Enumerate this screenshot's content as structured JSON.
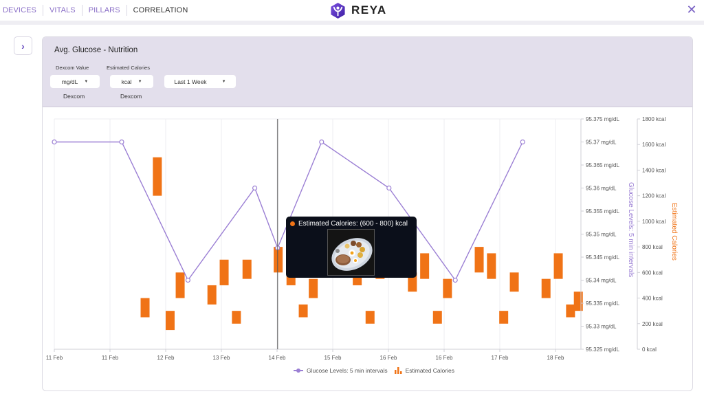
{
  "nav": {
    "items": [
      {
        "label": "DEVICES",
        "active": false
      },
      {
        "label": "VITALS",
        "active": false
      },
      {
        "label": "PILLARS",
        "active": false
      },
      {
        "label": "CORRELATION",
        "active": true
      }
    ]
  },
  "brand": {
    "name": "REYA",
    "logo_icon": "reya-logo-icon"
  },
  "header": {
    "close_icon": "close-icon",
    "expand_icon": "chevron-right-icon"
  },
  "card": {
    "title": "Avg. Glucose - Nutrition",
    "controls": [
      {
        "label": "Dexcom Value",
        "value": "mg/dL",
        "source": "Dexcom"
      },
      {
        "label": "Estimated Calories",
        "value": "kcal",
        "source": "Dexcom"
      },
      {
        "label": "",
        "value": "Last 1 Week",
        "source": ""
      }
    ]
  },
  "colors": {
    "glucose": "#9b7fd4",
    "calories": "#f07316",
    "accent": "#6a4fc0",
    "header_bg": "#e3dfec"
  },
  "tooltip": {
    "text": "Estimated Calories: (600 - 800) kcal",
    "image": "food-plate-image"
  },
  "chart_data": {
    "type": "line+floating-bar",
    "title": "Avg. Glucose - Nutrition",
    "x_tick_labels": [
      "11 Feb",
      "11 Feb",
      "12 Feb",
      "13 Feb",
      "14 Feb",
      "15 Feb",
      "16 Feb",
      "16 Feb",
      "17 Feb",
      "18 Feb"
    ],
    "y_left": {
      "label": "Glucose Levels: 5 min intervals",
      "unit": "mg/dL",
      "range": [
        95.325,
        95.375
      ],
      "ticks": [
        "95.375 mg/dL",
        "95.37 mg/dL",
        "95.365 mg/dL",
        "95.36 mg/dL",
        "95.355 mg/dL",
        "95.35 mg/dL",
        "95.345 mg/dL",
        "95.34 mg/dL",
        "95.335 mg/dL",
        "95.33 mg/dL",
        "95.325 mg/dL"
      ]
    },
    "y_right": {
      "label": "Estimated Calories",
      "unit": "kcal",
      "range": [
        0,
        1800
      ],
      "ticks": [
        "1800 kcal",
        "1600 kcal",
        "1400 kcal",
        "1200 kcal",
        "1000 kcal",
        "800 kcal",
        "600 kcal",
        "400 kcal",
        "200 kcal",
        "0 kcal"
      ]
    },
    "grid": true,
    "legend": {
      "position": "bottom-center",
      "entries": [
        "Glucose Levels: 5 min intervals",
        "Estimated Calories"
      ]
    },
    "series": [
      {
        "name": "Glucose Levels: 5 min intervals",
        "type": "line",
        "axis": "left",
        "points": [
          {
            "x": 0.0,
            "y": 95.37
          },
          {
            "x": 1.21,
            "y": 95.37
          },
          {
            "x": 2.4,
            "y": 95.34
          },
          {
            "x": 3.6,
            "y": 95.36
          },
          {
            "x": 4.01,
            "y": 95.347
          },
          {
            "x": 4.8,
            "y": 95.37
          },
          {
            "x": 6.01,
            "y": 95.36
          },
          {
            "x": 7.2,
            "y": 95.34
          },
          {
            "x": 8.41,
            "y": 95.37
          }
        ]
      },
      {
        "name": "Estimated Calories",
        "type": "floating-bar",
        "axis": "right",
        "ranges": [
          {
            "x": 1.63,
            "low": 250,
            "high": 400
          },
          {
            "x": 1.85,
            "low": 1200,
            "high": 1500
          },
          {
            "x": 2.08,
            "low": 150,
            "high": 300
          },
          {
            "x": 2.26,
            "low": 400,
            "high": 600
          },
          {
            "x": 2.83,
            "low": 350,
            "high": 500
          },
          {
            "x": 3.05,
            "low": 500,
            "high": 700
          },
          {
            "x": 3.27,
            "low": 200,
            "high": 300
          },
          {
            "x": 3.46,
            "low": 550,
            "high": 700
          },
          {
            "x": 4.02,
            "low": 600,
            "high": 800
          },
          {
            "x": 4.25,
            "low": 500,
            "high": 600
          },
          {
            "x": 4.47,
            "low": 250,
            "high": 350
          },
          {
            "x": 4.65,
            "low": 400,
            "high": 550
          },
          {
            "x": 5.44,
            "low": 500,
            "high": 600
          },
          {
            "x": 5.67,
            "low": 200,
            "high": 300
          },
          {
            "x": 5.85,
            "low": 550,
            "high": 600
          },
          {
            "x": 6.43,
            "low": 450,
            "high": 600
          },
          {
            "x": 6.65,
            "low": 550,
            "high": 750
          },
          {
            "x": 6.88,
            "low": 200,
            "high": 300
          },
          {
            "x": 7.06,
            "low": 400,
            "high": 550
          },
          {
            "x": 7.63,
            "low": 600,
            "high": 800
          },
          {
            "x": 7.85,
            "low": 550,
            "high": 750
          },
          {
            "x": 8.07,
            "low": 200,
            "high": 300
          },
          {
            "x": 8.26,
            "low": 450,
            "high": 600
          },
          {
            "x": 8.83,
            "low": 400,
            "high": 550
          },
          {
            "x": 9.05,
            "low": 550,
            "high": 750
          },
          {
            "x": 9.27,
            "low": 250,
            "high": 350
          },
          {
            "x": 9.41,
            "low": 300,
            "high": 450
          }
        ]
      }
    ],
    "crosshair_x": 4.01
  }
}
